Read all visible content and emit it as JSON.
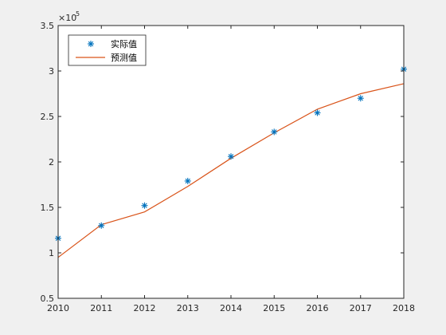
{
  "chart_data": {
    "type": "line",
    "title": "",
    "xlabel": "",
    "ylabel": "",
    "y_exponent_label": "×10",
    "y_exponent_power": "5",
    "xlim": [
      2010,
      2018
    ],
    "ylim": [
      0.5,
      3.5
    ],
    "x_ticks": [
      "2010",
      "2011",
      "2012",
      "2013",
      "2014",
      "2015",
      "2016",
      "2017",
      "2018"
    ],
    "y_ticks": [
      "0.5",
      "1",
      "1.5",
      "2",
      "2.5",
      "3",
      "3.5"
    ],
    "grid": false,
    "legend_position": "top-left",
    "series": [
      {
        "name": "实际值",
        "style": "markers-asterisk",
        "color": "#0072BD",
        "x": [
          2010,
          2011,
          2012,
          2013,
          2014,
          2015,
          2016,
          2017,
          2018
        ],
        "y": [
          1.16,
          1.3,
          1.52,
          1.79,
          2.06,
          2.33,
          2.54,
          2.7,
          3.02
        ]
      },
      {
        "name": "预测值",
        "style": "line",
        "color": "#D95319",
        "x": [
          2010,
          2011,
          2012,
          2013,
          2014,
          2015,
          2016,
          2017,
          2018
        ],
        "y": [
          0.95,
          1.31,
          1.45,
          1.73,
          2.04,
          2.32,
          2.58,
          2.75,
          2.86
        ]
      }
    ]
  }
}
